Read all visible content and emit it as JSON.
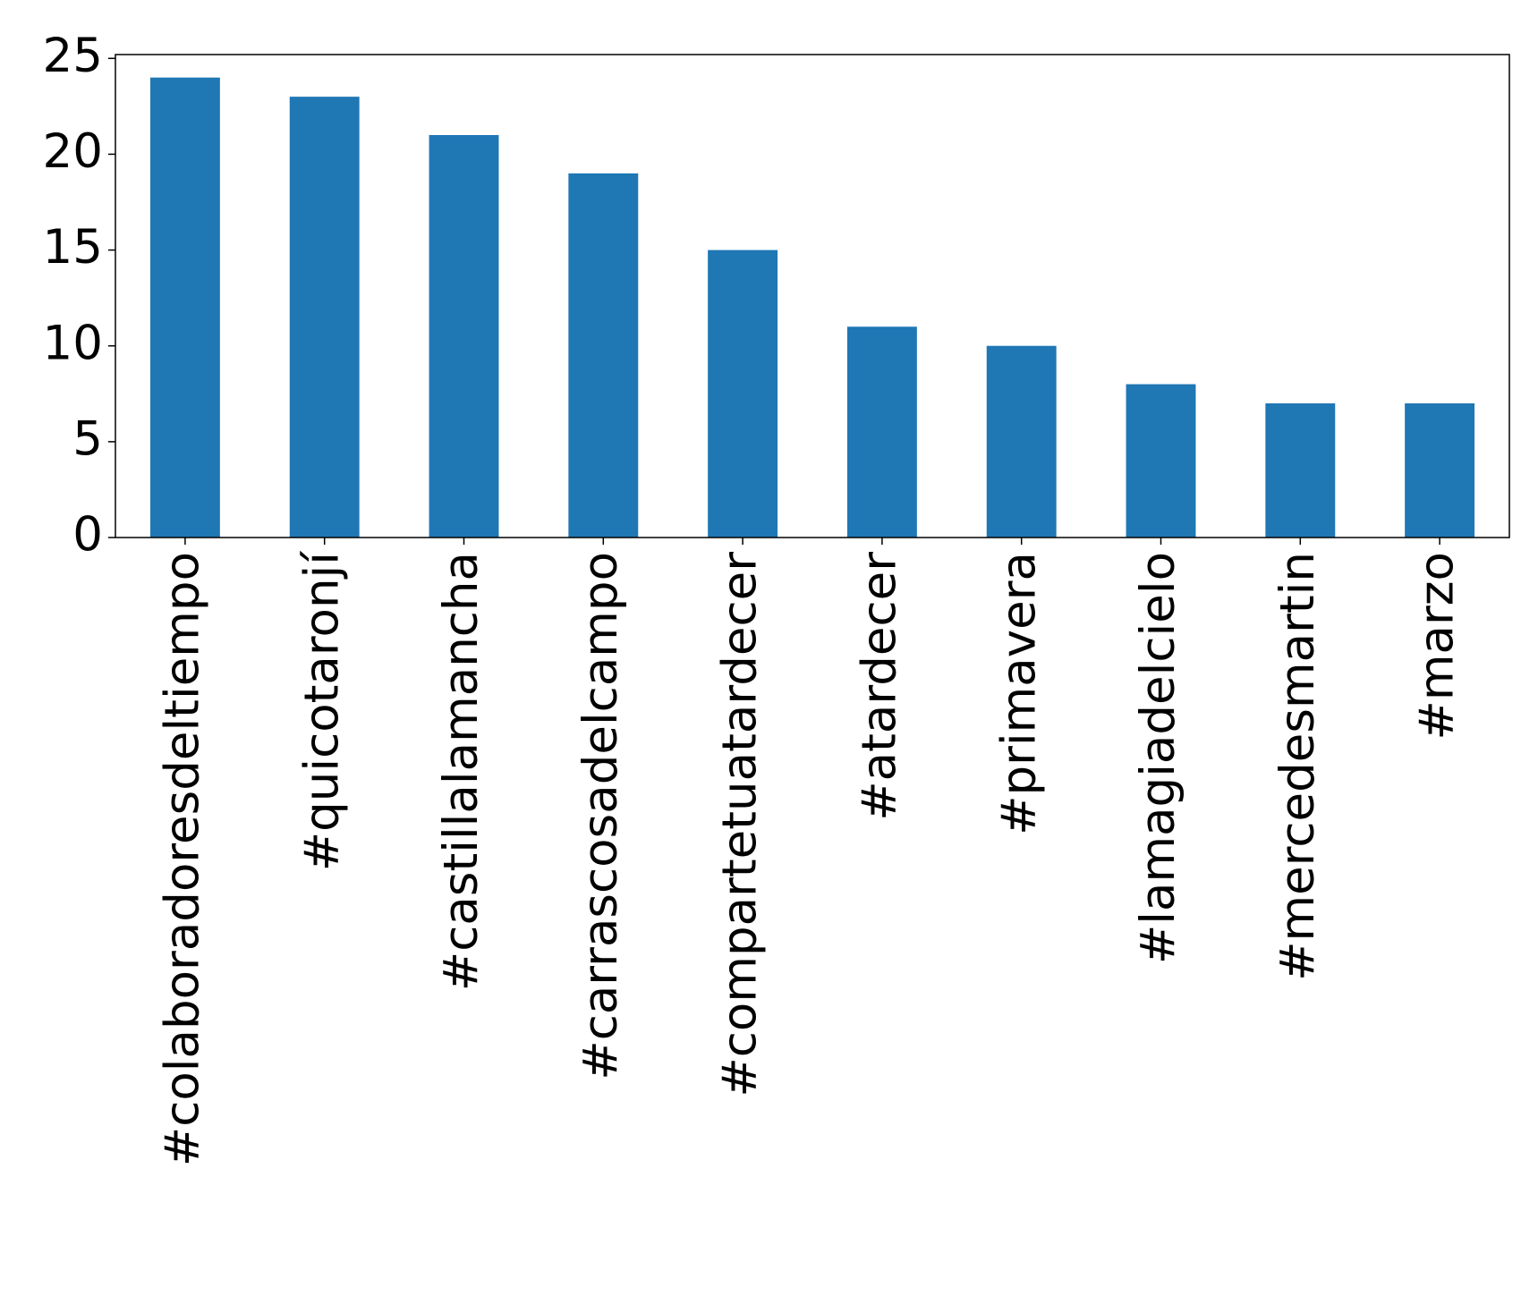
{
  "chart_data": {
    "type": "bar",
    "categories": [
      "#colaboradoresdeltiempo",
      "#quicotaronjí",
      "#castillalamancha",
      "#carrascosadelcampo",
      "#compartetuatardecer",
      "#atardecer",
      "#primavera",
      "#lamagiadelcielo",
      "#mercedesmartin",
      "#marzo"
    ],
    "values": [
      24,
      23,
      21,
      19,
      15,
      11,
      10,
      8,
      7,
      7
    ],
    "color": "#1f77b4",
    "ylim": [
      0,
      25.2
    ],
    "yticks": [
      0,
      5,
      10,
      15,
      20,
      25
    ],
    "grid": false
  }
}
